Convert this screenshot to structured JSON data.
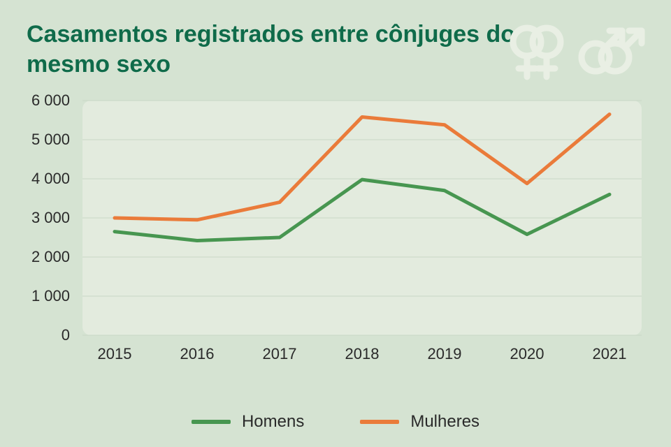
{
  "title": "Casamentos registrados entre cônjuges do mesmo sexo",
  "chart": {
    "type": "line",
    "background_color": "#d5e3d2",
    "plot_background_color": "#e3ebde",
    "plot_border_radius": 12,
    "x_categories": [
      "2015",
      "2016",
      "2017",
      "2018",
      "2019",
      "2020",
      "2021"
    ],
    "ylim": [
      0,
      6000
    ],
    "ytick_step": 1000,
    "ytick_labels": [
      "0",
      "1 000",
      "2 000",
      "3 000",
      "4 000",
      "5 000",
      "6 000"
    ],
    "grid_color": "#c9d7c5",
    "axis_text_color": "#2a2a2a",
    "axis_fontsize": 22,
    "line_width": 5,
    "series": [
      {
        "key": "homens",
        "label": "Homens",
        "color": "#479650",
        "values": [
          2650,
          2420,
          2500,
          3980,
          3700,
          2580,
          3600
        ]
      },
      {
        "key": "mulheres",
        "label": "Mulheres",
        "color": "#ea7b3a",
        "values": [
          3000,
          2950,
          3400,
          5580,
          5380,
          3880,
          5650
        ]
      }
    ]
  },
  "legend": {
    "fontsize": 24,
    "text_color": "#2a2a2a",
    "swatch_width": 56,
    "swatch_height": 6
  },
  "icons": {
    "color": "#e9efe4",
    "items": [
      "double-female-icon",
      "double-male-icon"
    ]
  }
}
